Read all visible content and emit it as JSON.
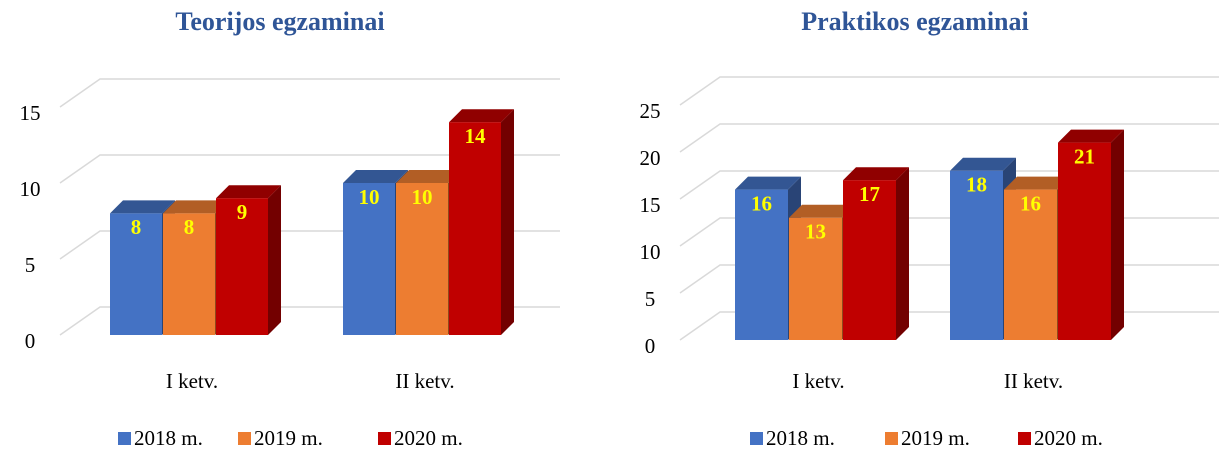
{
  "chart_data": [
    {
      "type": "bar3d",
      "title": "Teorijos egzaminai",
      "categories": [
        "I ketv.",
        "II ketv."
      ],
      "series": [
        {
          "name": "2018 m.",
          "color": "#4472c4",
          "values": [
            8,
            10
          ]
        },
        {
          "name": "2019 m.",
          "color": "#ed7d31",
          "values": [
            8,
            10
          ]
        },
        {
          "name": "2020 m.",
          "color": "#c00000",
          "values": [
            9,
            14
          ]
        }
      ],
      "ylim": [
        0,
        15
      ],
      "yticks": [
        0,
        5,
        10,
        15
      ],
      "grid": true,
      "legend": "bottom"
    },
    {
      "type": "bar3d",
      "title": "Praktikos egzaminai",
      "categories": [
        "I ketv.",
        "II ketv."
      ],
      "series": [
        {
          "name": "2018 m.",
          "color": "#4472c4",
          "values": [
            16,
            18
          ]
        },
        {
          "name": "2019 m.",
          "color": "#ed7d31",
          "values": [
            13,
            16
          ]
        },
        {
          "name": "2020 m.",
          "color": "#c00000",
          "values": [
            17,
            21
          ]
        }
      ],
      "ylim": [
        0,
        25
      ],
      "yticks": [
        0,
        5,
        10,
        15,
        20,
        25
      ],
      "grid": true,
      "legend": "bottom"
    }
  ]
}
